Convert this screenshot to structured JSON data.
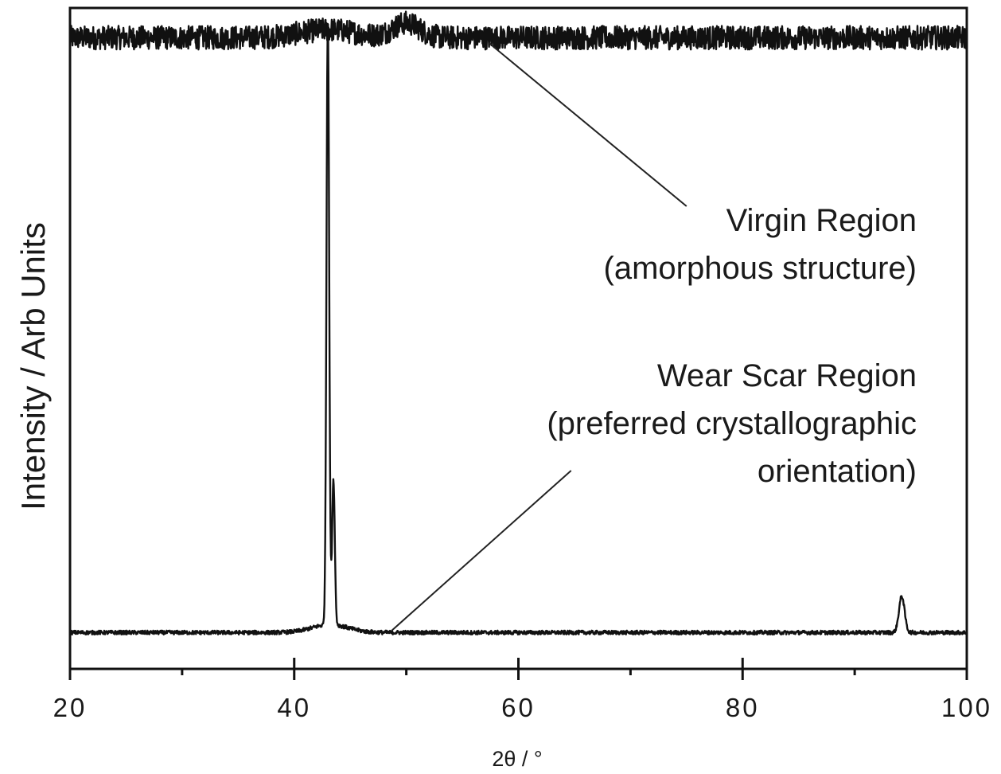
{
  "chart_data": {
    "type": "line",
    "title": "",
    "xlabel": "2θ / °",
    "ylabel": "Intensity / Arb Units",
    "xlim": [
      20,
      100
    ],
    "ylim": [
      0,
      1
    ],
    "x_ticks": [
      20,
      40,
      60,
      80,
      100
    ],
    "x_minor_ticks": [
      30,
      50,
      70,
      90
    ],
    "y_tick_labels": false,
    "grid": false,
    "legend": "none",
    "series": [
      {
        "key": "virgin",
        "baseline": 0.955,
        "noise": 0.018,
        "peaks": [
          {
            "x": 43,
            "height": 0.012,
            "width": 2.5
          },
          {
            "x": 50,
            "height": 0.022,
            "width": 1.2
          }
        ],
        "color": "#111111"
      },
      {
        "key": "wear",
        "baseline": 0.055,
        "noise": 0.003,
        "peaks": [
          {
            "x": 43.0,
            "height": 0.92,
            "width": 0.12
          },
          {
            "x": 43.5,
            "height": 0.22,
            "width": 0.12
          },
          {
            "x": 94.2,
            "height": 0.055,
            "width": 0.25
          },
          {
            "x": 43.2,
            "height": 0.012,
            "width": 1.6
          }
        ],
        "color": "#111111"
      }
    ],
    "annotations": [
      {
        "key": "virgin-annotation",
        "lines": [
          "Virgin Region",
          "(amorphous structure)"
        ],
        "pointer_from": {
          "x": 75,
          "y": 0.7
        },
        "pointer_to": {
          "x": 57.3,
          "y": 0.948
        }
      },
      {
        "key": "wear-annotation",
        "lines": [
          "Wear Scar Region",
          "(preferred crystallographic",
          "orientation)"
        ],
        "pointer_from": {
          "x": 64.7,
          "y": 0.3
        },
        "pointer_to": {
          "x": 48.7,
          "y": 0.058
        }
      }
    ]
  }
}
